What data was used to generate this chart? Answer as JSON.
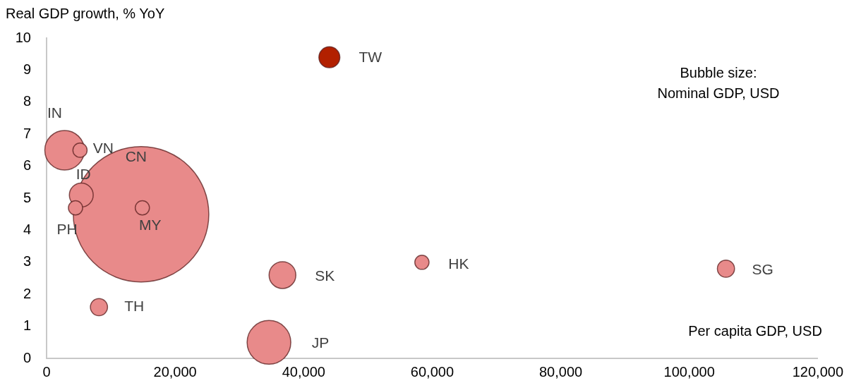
{
  "chart_data": {
    "type": "bubble",
    "ylabel": "Real GDP growth, % YoY",
    "xlabel": "Per capita GDP, USD",
    "annotations": [
      "Bubble size:\nNominal GDP, USD"
    ],
    "xlim": [
      0,
      120000
    ],
    "xticks": [
      0,
      {
        "value": 20000,
        "label": "20,000"
      },
      {
        "value": 40000,
        "label": "40,000"
      },
      {
        "value": 60000,
        "label": "60,000"
      },
      {
        "value": 80000,
        "label": "80,000"
      },
      {
        "value": 100000,
        "label": "100,000"
      },
      {
        "value": 120000,
        "label": "120,000"
      }
    ],
    "ylim": [
      0,
      10
    ],
    "yticks": [
      0,
      1,
      2,
      3,
      4,
      5,
      6,
      7,
      8,
      9,
      10
    ],
    "grid": false,
    "legend": false,
    "series": [
      {
        "name": "IN",
        "color": "#e88a8a",
        "x": [
          2800
        ],
        "values": [
          6.5
        ],
        "sizes": [
          0.085
        ]
      },
      {
        "name": "VN",
        "color": "#e88a8a",
        "x": [
          5200
        ],
        "values": [
          6.5
        ],
        "sizes": [
          0.011
        ]
      },
      {
        "name": "CN",
        "color": "#e88a8a",
        "x": [
          14700
        ],
        "values": [
          4.5
        ],
        "sizes": [
          1
        ]
      },
      {
        "name": "ID",
        "color": "#e88a8a",
        "x": [
          5400
        ],
        "values": [
          5.1
        ],
        "sizes": [
          0.031
        ]
      },
      {
        "name": "PH",
        "color": "#e88a8a",
        "x": [
          4500
        ],
        "values": [
          4.7
        ],
        "sizes": [
          0.011
        ]
      },
      {
        "name": "MY",
        "color": "#e88a8a",
        "x": [
          14900
        ],
        "values": [
          4.7
        ],
        "sizes": [
          0.011
        ]
      },
      {
        "name": "TW",
        "color": "#b22000",
        "x": [
          44000
        ],
        "values": [
          9.4
        ],
        "sizes": [
          0.024
        ]
      },
      {
        "name": "SK",
        "color": "#e88a8a",
        "x": [
          36700
        ],
        "values": [
          2.6
        ],
        "sizes": [
          0.039
        ]
      },
      {
        "name": "HK",
        "color": "#e88a8a",
        "x": [
          58400
        ],
        "values": [
          3.0
        ],
        "sizes": [
          0.011
        ]
      },
      {
        "name": "SG",
        "color": "#e88a8a",
        "x": [
          105700
        ],
        "values": [
          2.8
        ],
        "sizes": [
          0.016
        ]
      },
      {
        "name": "TH",
        "color": "#e88a8a",
        "x": [
          8150
        ],
        "values": [
          1.6
        ],
        "sizes": [
          0.016
        ]
      },
      {
        "name": "JP",
        "color": "#e88a8a",
        "x": [
          34600
        ],
        "values": [
          0.5
        ],
        "sizes": [
          0.104
        ]
      }
    ]
  }
}
